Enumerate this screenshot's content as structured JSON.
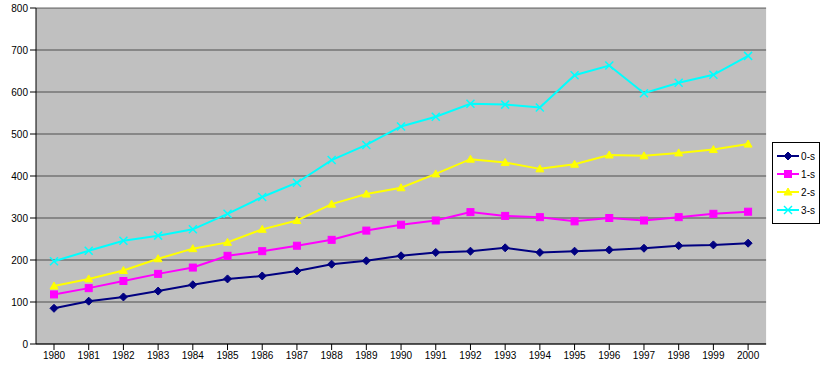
{
  "chart_data": {
    "type": "line",
    "categories": [
      "1980",
      "1981",
      "1982",
      "1983",
      "1984",
      "1985",
      "1986",
      "1987",
      "1988",
      "1989",
      "1990",
      "1991",
      "1992",
      "1993",
      "1994",
      "1995",
      "1996",
      "1997",
      "1998",
      "1999",
      "2000"
    ],
    "series": [
      {
        "name": "0-s",
        "color": "#000080",
        "marker": "diamond",
        "values": [
          85,
          102,
          112,
          126,
          141,
          155,
          162,
          174,
          190,
          198,
          210,
          218,
          221,
          229,
          218,
          221,
          224,
          228,
          234,
          236,
          240
        ]
      },
      {
        "name": "1-s",
        "color": "#FF00FF",
        "marker": "square",
        "values": [
          118,
          133,
          150,
          167,
          182,
          210,
          221,
          234,
          248,
          270,
          284,
          294,
          314,
          305,
          302,
          292,
          300,
          294,
          302,
          310,
          315
        ]
      },
      {
        "name": "2-s",
        "color": "#FFFF00",
        "marker": "triangle",
        "values": [
          138,
          155,
          175,
          203,
          227,
          242,
          273,
          294,
          333,
          357,
          372,
          405,
          440,
          432,
          417,
          428,
          450,
          448,
          455,
          463,
          476
        ]
      },
      {
        "name": "3-s",
        "color": "#00FFFF",
        "marker": "x",
        "values": [
          197,
          222,
          246,
          258,
          273,
          310,
          350,
          384,
          438,
          474,
          518,
          541,
          572,
          570,
          563,
          640,
          663,
          597,
          622,
          641,
          686
        ]
      }
    ],
    "ylim": [
      0,
      800
    ],
    "yticks": [
      0,
      100,
      200,
      300,
      400,
      500,
      600,
      700,
      800
    ],
    "grid": true,
    "legend": "right"
  }
}
